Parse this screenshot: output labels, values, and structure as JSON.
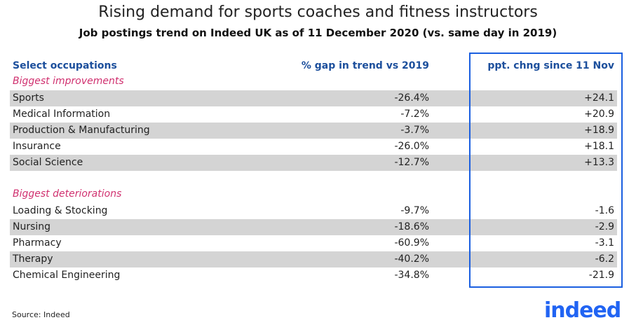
{
  "title": "Rising demand for sports coaches and fitness instructors",
  "subtitle": "Job postings trend on Indeed UK as of 11 December 2020 (vs. same day in 2019)",
  "headers": {
    "occupation": "Select occupations",
    "gap": "% gap in trend vs 2019",
    "change": "ppt. chng since 11 Nov"
  },
  "colors": {
    "header": "#1c4f9c",
    "section": "#d0306f",
    "highlight_box": "#1a5fe0",
    "row_shade": "#d4d4d4",
    "brand": "#2164f3"
  },
  "sections": [
    {
      "label": "Biggest improvements",
      "rows": [
        {
          "occupation": "Sports",
          "gap": "-26.4%",
          "change": "+24.1"
        },
        {
          "occupation": "Medical Information",
          "gap": "-7.2%",
          "change": "+20.9"
        },
        {
          "occupation": "Production & Manufacturing",
          "gap": "-3.7%",
          "change": "+18.9"
        },
        {
          "occupation": "Insurance",
          "gap": "-26.0%",
          "change": "+18.1"
        },
        {
          "occupation": "Social Science",
          "gap": "-12.7%",
          "change": "+13.3"
        }
      ]
    },
    {
      "label": "Biggest deteriorations",
      "rows": [
        {
          "occupation": "Loading & Stocking",
          "gap": "-9.7%",
          "change": "-1.6"
        },
        {
          "occupation": "Nursing",
          "gap": "-18.6%",
          "change": "-2.9"
        },
        {
          "occupation": "Pharmacy",
          "gap": "-60.9%",
          "change": "-3.1"
        },
        {
          "occupation": "Therapy",
          "gap": "-40.2%",
          "change": "-6.2"
        },
        {
          "occupation": "Chemical Engineering",
          "gap": "-34.8%",
          "change": "-21.9"
        }
      ]
    }
  ],
  "source": "Source: Indeed",
  "logo": "indeed"
}
